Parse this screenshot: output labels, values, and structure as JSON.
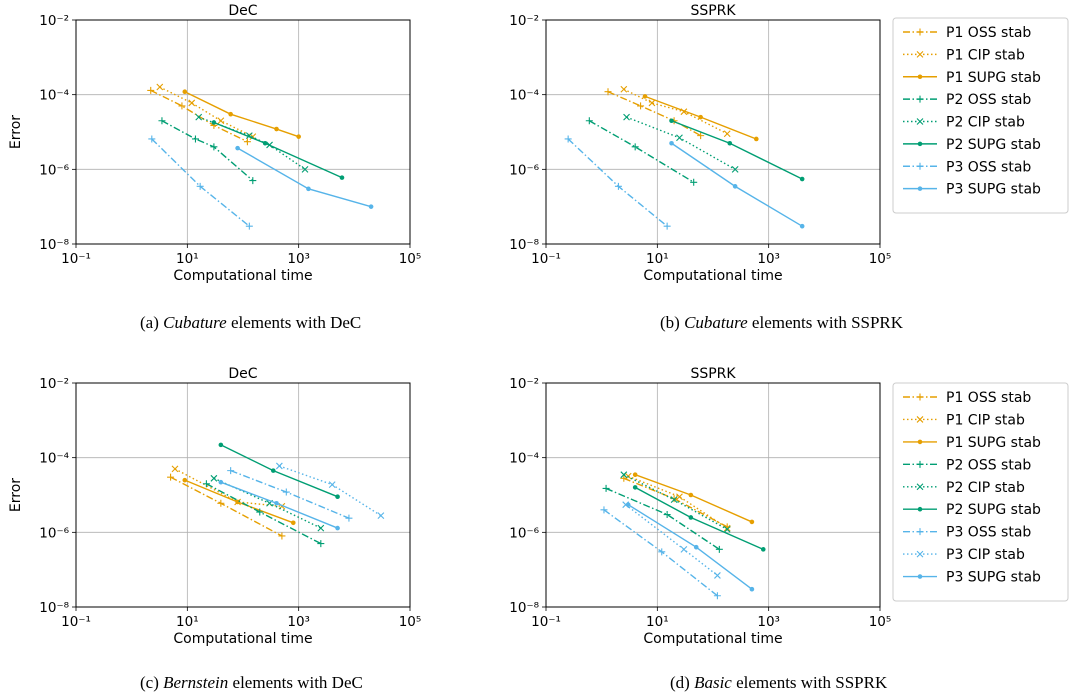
{
  "figure": {
    "captions": [
      {
        "label": "(a)",
        "emph": "Cubature",
        "rest": "elements with DeC"
      },
      {
        "label": "(b)",
        "emph": "Cubature",
        "rest": "elements with SSPRK"
      },
      {
        "label": "(c)",
        "emph": "Bernstein",
        "rest": "elements with DeC"
      },
      {
        "label": "(d)",
        "emph": "Basic",
        "rest": "elements with SSPRK"
      }
    ]
  },
  "chart_data": [
    {
      "type": "line",
      "title": "DeC",
      "xlabel": "Computational time",
      "ylabel": "Error",
      "xscale": "log",
      "yscale": "log",
      "xlim": [
        0.1,
        100000
      ],
      "ylim": [
        1e-08,
        0.01
      ],
      "xticks": [
        "10⁻¹",
        "10¹",
        "10³",
        "10⁵"
      ],
      "yticks": [
        "10⁻²",
        "10⁻⁴",
        "10⁻⁶",
        "10⁻⁸"
      ],
      "grid": true,
      "legend": null,
      "series": [
        {
          "name": "P1 OSS stab",
          "color": "#e69f00",
          "dash": "dashdot",
          "marker": "plus",
          "x": [
            2.2,
            8,
            30,
            120
          ],
          "y": [
            0.00013,
            5e-05,
            1.5e-05,
            5.5e-06
          ]
        },
        {
          "name": "P1 CIP stab",
          "color": "#e69f00",
          "dash": "dotted",
          "marker": "x",
          "x": [
            3.2,
            12,
            40,
            150
          ],
          "y": [
            0.00016,
            6e-05,
            2e-05,
            7.5e-06
          ]
        },
        {
          "name": "P1 SUPG stab",
          "color": "#e69f00",
          "dash": "solid",
          "marker": "dot",
          "x": [
            9,
            60,
            400,
            1000
          ],
          "y": [
            0.00012,
            3e-05,
            1.2e-05,
            7.5e-06
          ]
        },
        {
          "name": "P2 OSS stab",
          "color": "#009e73",
          "dash": "dashdot",
          "marker": "plus",
          "x": [
            3.5,
            14,
            30,
            150
          ],
          "y": [
            2e-05,
            6.5e-06,
            4e-06,
            5e-07
          ]
        },
        {
          "name": "P2 CIP stab",
          "color": "#009e73",
          "dash": "dotted",
          "marker": "x",
          "x": [
            16,
            130,
            300,
            1300
          ],
          "y": [
            2.5e-05,
            8e-06,
            4.5e-06,
            1e-06
          ]
        },
        {
          "name": "P2 SUPG stab",
          "color": "#009e73",
          "dash": "solid",
          "marker": "dot",
          "x": [
            30,
            250,
            6000
          ],
          "y": [
            1.8e-05,
            5e-06,
            6e-07
          ]
        },
        {
          "name": "P3 OSS stab",
          "color": "#56b4e9",
          "dash": "dashdot",
          "marker": "plus",
          "x": [
            2.3,
            17,
            130
          ],
          "y": [
            6.5e-06,
            3.5e-07,
            3e-08
          ]
        },
        {
          "name": "P3 SUPG stab",
          "color": "#56b4e9",
          "dash": "solid",
          "marker": "dot",
          "x": [
            80,
            1500,
            20000
          ],
          "y": [
            3.7e-06,
            3e-07,
            1e-07
          ]
        }
      ]
    },
    {
      "type": "line",
      "title": "SSPRK",
      "xlabel": "Computational time",
      "ylabel": "",
      "xscale": "log",
      "yscale": "log",
      "xlim": [
        0.1,
        100000
      ],
      "ylim": [
        1e-08,
        0.01
      ],
      "xticks": [
        "10⁻¹",
        "10¹",
        "10³",
        "10⁵"
      ],
      "yticks": [
        "10⁻²",
        "10⁻⁴",
        "10⁻⁶",
        "10⁻⁸"
      ],
      "grid": true,
      "legend": "right",
      "series": [
        {
          "name": "P1 OSS stab",
          "color": "#e69f00",
          "dash": "dashdot",
          "marker": "plus",
          "x": [
            1.3,
            5,
            20,
            60
          ],
          "y": [
            0.00012,
            5e-05,
            2e-05,
            8e-06
          ]
        },
        {
          "name": "P1 CIP stab",
          "color": "#e69f00",
          "dash": "dotted",
          "marker": "x",
          "x": [
            2.5,
            8,
            30,
            180
          ],
          "y": [
            0.00014,
            6e-05,
            3.5e-05,
            9e-06
          ]
        },
        {
          "name": "P1 SUPG stab",
          "color": "#e69f00",
          "dash": "solid",
          "marker": "dot",
          "x": [
            6,
            60,
            600
          ],
          "y": [
            9e-05,
            2.5e-05,
            6.5e-06
          ]
        },
        {
          "name": "P2 OSS stab",
          "color": "#009e73",
          "dash": "dashdot",
          "marker": "plus",
          "x": [
            0.6,
            4,
            45
          ],
          "y": [
            2e-05,
            4e-06,
            4.5e-07
          ]
        },
        {
          "name": "P2 CIP stab",
          "color": "#009e73",
          "dash": "dotted",
          "marker": "x",
          "x": [
            2.8,
            25,
            250
          ],
          "y": [
            2.5e-05,
            7e-06,
            1e-06
          ]
        },
        {
          "name": "P2 SUPG stab",
          "color": "#009e73",
          "dash": "solid",
          "marker": "dot",
          "x": [
            18,
            200,
            4000
          ],
          "y": [
            2e-05,
            5e-06,
            5.5e-07
          ]
        },
        {
          "name": "P3 OSS stab",
          "color": "#56b4e9",
          "dash": "dashdot",
          "marker": "plus",
          "x": [
            0.25,
            2,
            15
          ],
          "y": [
            6.5e-06,
            3.5e-07,
            3e-08
          ]
        },
        {
          "name": "P3 SUPG stab",
          "color": "#56b4e9",
          "dash": "solid",
          "marker": "dot",
          "x": [
            18,
            250,
            4000
          ],
          "y": [
            5e-06,
            3.5e-07,
            3e-08
          ]
        }
      ]
    },
    {
      "type": "line",
      "title": "DeC",
      "xlabel": "Computational time",
      "ylabel": "Error",
      "xscale": "log",
      "yscale": "log",
      "xlim": [
        0.1,
        100000
      ],
      "ylim": [
        1e-08,
        0.01
      ],
      "xticks": [
        "10⁻¹",
        "10¹",
        "10³",
        "10⁵"
      ],
      "yticks": [
        "10⁻²",
        "10⁻⁴",
        "10⁻⁶",
        "10⁻⁸"
      ],
      "grid": true,
      "legend": null,
      "series": [
        {
          "name": "P1 OSS stab",
          "color": "#e69f00",
          "dash": "dashdot",
          "marker": "plus",
          "x": [
            5,
            40,
            500
          ],
          "y": [
            3e-05,
            6e-06,
            8e-07
          ]
        },
        {
          "name": "P1 CIP stab",
          "color": "#e69f00",
          "dash": "dotted",
          "marker": "x",
          "x": [
            6,
            80,
            500
          ],
          "y": [
            5e-05,
            6.5e-06,
            5e-06
          ]
        },
        {
          "name": "P1 SUPG stab",
          "color": "#e69f00",
          "dash": "solid",
          "marker": "dot",
          "x": [
            9,
            80,
            800
          ],
          "y": [
            2.5e-05,
            6.5e-06,
            1.8e-06
          ]
        },
        {
          "name": "P2 OSS stab",
          "color": "#009e73",
          "dash": "dashdot",
          "marker": "plus",
          "x": [
            22,
            200,
            2500
          ],
          "y": [
            2e-05,
            3.5e-06,
            5e-07
          ]
        },
        {
          "name": "P2 CIP stab",
          "color": "#009e73",
          "dash": "dotted",
          "marker": "x",
          "x": [
            30,
            300,
            2500
          ],
          "y": [
            2.8e-05,
            6e-06,
            1.3e-06
          ]
        },
        {
          "name": "P2 SUPG stab",
          "color": "#009e73",
          "dash": "solid",
          "marker": "dot",
          "x": [
            40,
            350,
            5000
          ],
          "y": [
            0.00022,
            4.5e-05,
            9e-06
          ]
        },
        {
          "name": "P3 OSS stab",
          "color": "#56b4e9",
          "dash": "dashdot",
          "marker": "plus",
          "x": [
            60,
            600,
            8000
          ],
          "y": [
            4.5e-05,
            1.2e-05,
            2.4e-06
          ]
        },
        {
          "name": "P3 CIP stab",
          "color": "#56b4e9",
          "dash": "dotted",
          "marker": "x",
          "x": [
            450,
            4000,
            30000
          ],
          "y": [
            6e-05,
            1.9e-05,
            2.8e-06
          ]
        },
        {
          "name": "P3 SUPG stab",
          "color": "#56b4e9",
          "dash": "solid",
          "marker": "dot",
          "x": [
            40,
            400,
            5000
          ],
          "y": [
            2.2e-05,
            6e-06,
            1.3e-06
          ]
        }
      ]
    },
    {
      "type": "line",
      "title": "SSPRK",
      "xlabel": "Computational time",
      "ylabel": "",
      "xscale": "log",
      "yscale": "log",
      "xlim": [
        0.1,
        100000
      ],
      "ylim": [
        1e-08,
        0.01
      ],
      "xticks": [
        "10⁻¹",
        "10¹",
        "10³",
        "10⁵"
      ],
      "yticks": [
        "10⁻²",
        "10⁻⁴",
        "10⁻⁶",
        "10⁻⁸"
      ],
      "grid": true,
      "legend": "right",
      "series": [
        {
          "name": "P1 OSS stab",
          "color": "#e69f00",
          "dash": "dashdot",
          "marker": "plus",
          "x": [
            2.5,
            20,
            180
          ],
          "y": [
            2.8e-05,
            8e-06,
            1.4e-06
          ]
        },
        {
          "name": "P1 CIP stab",
          "color": "#e69f00",
          "dash": "dotted",
          "marker": "x",
          "x": [
            3,
            25,
            180
          ],
          "y": [
            3.2e-05,
            9e-06,
            1.3e-06
          ]
        },
        {
          "name": "P1 SUPG stab",
          "color": "#e69f00",
          "dash": "solid",
          "marker": "dot",
          "x": [
            4,
            40,
            500
          ],
          "y": [
            3.5e-05,
            1e-05,
            1.9e-06
          ]
        },
        {
          "name": "P2 OSS stab",
          "color": "#009e73",
          "dash": "dashdot",
          "marker": "plus",
          "x": [
            1.2,
            15,
            130
          ],
          "y": [
            1.5e-05,
            3e-06,
            3.5e-07
          ]
        },
        {
          "name": "P2 CIP stab",
          "color": "#009e73",
          "dash": "dotted",
          "marker": "x",
          "x": [
            2.5,
            20,
            180
          ],
          "y": [
            3.5e-05,
            7.5e-06,
            1.2e-06
          ]
        },
        {
          "name": "P2 SUPG stab",
          "color": "#009e73",
          "dash": "solid",
          "marker": "dot",
          "x": [
            4,
            40,
            800
          ],
          "y": [
            1.6e-05,
            2.5e-06,
            3.5e-07
          ]
        },
        {
          "name": "P3 OSS stab",
          "color": "#56b4e9",
          "dash": "dashdot",
          "marker": "plus",
          "x": [
            1.1,
            12,
            120
          ],
          "y": [
            4e-06,
            3e-07,
            2e-08
          ]
        },
        {
          "name": "P3 CIP stab",
          "color": "#56b4e9",
          "dash": "dotted",
          "marker": "x",
          "x": [
            2.7,
            30,
            120
          ],
          "y": [
            5.5e-06,
            3.5e-07,
            7e-08
          ]
        },
        {
          "name": "P3 SUPG stab",
          "color": "#56b4e9",
          "dash": "solid",
          "marker": "dot",
          "x": [
            3,
            50,
            500
          ],
          "y": [
            5.5e-06,
            4e-07,
            3e-08
          ]
        }
      ]
    }
  ]
}
